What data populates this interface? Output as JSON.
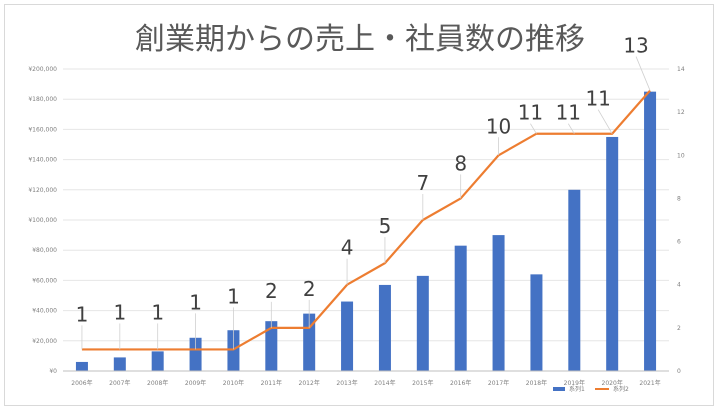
{
  "chart_data": {
    "type": "bar",
    "title": "創業期からの売上・社員数の推移",
    "categories": [
      "2006年",
      "2007年",
      "2008年",
      "2009年",
      "2010年",
      "2011年",
      "2012年",
      "2013年",
      "2014年",
      "2015年",
      "2016年",
      "2017年",
      "2018年",
      "2019年",
      "2020年",
      "2021年"
    ],
    "series": [
      {
        "name": "系列1",
        "type": "bar",
        "axis": "left",
        "color": "#4472c4",
        "values": [
          6000,
          9000,
          13000,
          22000,
          27000,
          33000,
          38000,
          46000,
          57000,
          63000,
          83000,
          90000,
          64000,
          120000,
          155000,
          185000
        ]
      },
      {
        "name": "系列2",
        "type": "line",
        "axis": "right",
        "color": "#ed7d31",
        "values": [
          1,
          1,
          1,
          1,
          1,
          2,
          2,
          4,
          5,
          7,
          8,
          10,
          11,
          11,
          11,
          13
        ],
        "data_labels": [
          "1",
          "1",
          "1",
          "1",
          "1",
          "2",
          "2",
          "4",
          "5",
          "7",
          "8",
          "10",
          "11",
          "11",
          "11",
          "13"
        ]
      }
    ],
    "y_left": {
      "ylim": [
        0,
        200000
      ],
      "ticks": [
        0,
        20000,
        40000,
        60000,
        80000,
        100000,
        120000,
        140000,
        160000,
        180000,
        200000
      ],
      "tick_labels": [
        "¥0",
        "¥20,000",
        "¥40,000",
        "¥60,000",
        "¥80,000",
        "¥100,000",
        "¥120,000",
        "¥140,000",
        "¥160,000",
        "¥180,000",
        "¥200,000"
      ]
    },
    "y_right": {
      "ylim": [
        0,
        14
      ],
      "ticks": [
        0,
        2,
        4,
        6,
        8,
        10,
        12,
        14
      ],
      "tick_labels": [
        "0",
        "2",
        "4",
        "6",
        "8",
        "10",
        "12",
        "14"
      ]
    },
    "grid": true,
    "legend": {
      "position": "bottom-right",
      "entries": [
        "系列1",
        "系列2"
      ]
    }
  }
}
